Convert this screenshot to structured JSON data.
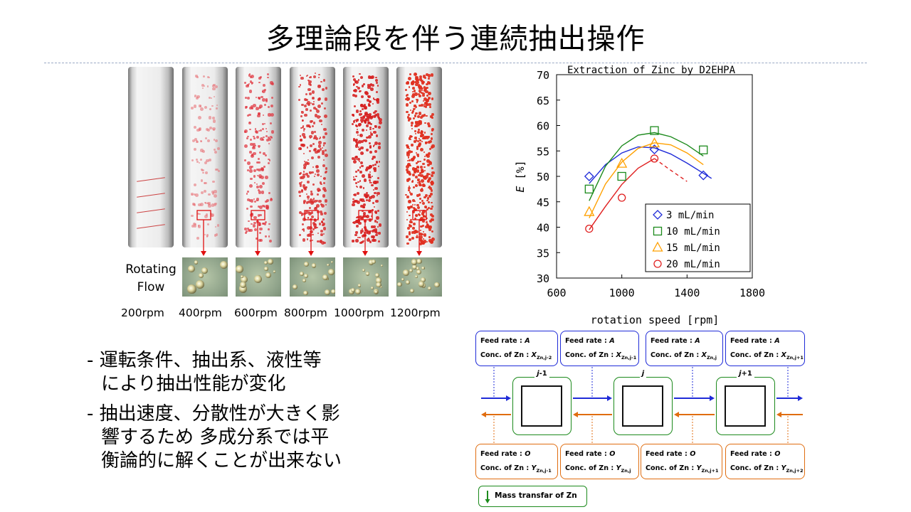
{
  "slide": {
    "title": "多理論段を伴う連続抽出操作"
  },
  "photos": {
    "flow_label_line1": "Rotating",
    "flow_label_line2": "Flow",
    "speeds": [
      "200rpm",
      "400rpm",
      "600rpm",
      "800rpm",
      "1000rpm",
      "1200rpm"
    ]
  },
  "bullets": {
    "b1_line1": "-  運転条件、抽出系、液性等",
    "b1_line2": "により抽出性能が変化",
    "b2_line1": "-  抽出速度、分散性が大きく影",
    "b2_line2": "響するため 多成分系では平",
    "b2_line3": "衡論的に解くことが出来ない"
  },
  "chart_data": {
    "type": "scatter",
    "title": "Extraction of Zinc by D2EHPA",
    "xlabel": "rotation speed [rpm]",
    "ylabel_var": "E",
    "ylabel_unit": " [%]",
    "xlim": [
      600,
      1800
    ],
    "ylim": [
      30,
      70
    ],
    "xticks": [
      600,
      1000,
      1400,
      1800
    ],
    "yticks": [
      30,
      35,
      40,
      45,
      50,
      55,
      60,
      65,
      70
    ],
    "legend_position": "bottom-right",
    "series": [
      {
        "name": "3 mL/min",
        "marker": "diamond",
        "color": "#1f2bd8",
        "x": [
          800,
          1200,
          1500
        ],
        "y": [
          50.0,
          55.3,
          50.2
        ],
        "fit_x": [
          800,
          900,
          1000,
          1100,
          1200,
          1300,
          1400,
          1500,
          1550
        ],
        "fit_y": [
          48.6,
          52.3,
          54.6,
          55.8,
          55.6,
          54.4,
          52.6,
          50.6,
          49.6
        ]
      },
      {
        "name": "10 mL/min",
        "marker": "square",
        "color": "#1c8a1c",
        "x": [
          800,
          1000,
          1200,
          1500
        ],
        "y": [
          47.5,
          50.0,
          59.0,
          55.2
        ],
        "fit_x": [
          800,
          900,
          1000,
          1100,
          1200,
          1300,
          1400,
          1500
        ],
        "fit_y": [
          45.2,
          52.0,
          56.0,
          58.1,
          58.6,
          57.8,
          56.2,
          54.0
        ]
      },
      {
        "name": "15 mL/min",
        "marker": "triangle",
        "color": "#ffa000",
        "x": [
          800,
          1000,
          1200
        ],
        "y": [
          43.0,
          52.5,
          56.5
        ],
        "fit_x": [
          800,
          900,
          1000,
          1100,
          1200,
          1300,
          1400,
          1500
        ],
        "fit_y": [
          41.8,
          48.5,
          52.8,
          55.5,
          56.6,
          56.2,
          54.6,
          52.3
        ]
      },
      {
        "name": "20 mL/min",
        "marker": "circle",
        "color": "#e02020",
        "x": [
          800,
          1000,
          1200
        ],
        "y": [
          39.7,
          45.8,
          53.5
        ],
        "fit_x": [
          800,
          900,
          1000,
          1100,
          1200
        ],
        "fit_y": [
          39.5,
          44.1,
          48.4,
          51.6,
          53.5
        ],
        "dashed_x": [
          1200,
          1300,
          1400
        ],
        "dashed_y": [
          53.5,
          51.2,
          49.0
        ]
      }
    ]
  },
  "diagram": {
    "feed_rate_label": "Feed rate : ",
    "conc_label": "Conc. of Zn : ",
    "aqueous": [
      {
        "rate": "A",
        "var": "X",
        "sub": "Zn,j-2"
      },
      {
        "rate": "A",
        "var": "X",
        "sub": "Zn,j-1"
      },
      {
        "rate": "A",
        "var": "X",
        "sub": "Zn,j"
      },
      {
        "rate": "A",
        "var": "X",
        "sub": "Zn,j+1"
      }
    ],
    "organic": [
      {
        "rate": "O",
        "var": "Y",
        "sub": "Zn,j-1"
      },
      {
        "rate": "O",
        "var": "Y",
        "sub": "Zn,j"
      },
      {
        "rate": "O",
        "var": "Y",
        "sub": "Zn,j+1"
      },
      {
        "rate": "O",
        "var": "Y",
        "sub": "Zn,j+2"
      }
    ],
    "stages": [
      {
        "var": "j",
        "suffix": "-1"
      },
      {
        "var": "j",
        "suffix": ""
      },
      {
        "var": "j",
        "suffix": "+1"
      }
    ],
    "legend": "Mass transfar of Zn",
    "colors": {
      "aqueous": "#1f2bd8",
      "organic": "#e06d10",
      "transfer": "#1c8a1c"
    }
  }
}
